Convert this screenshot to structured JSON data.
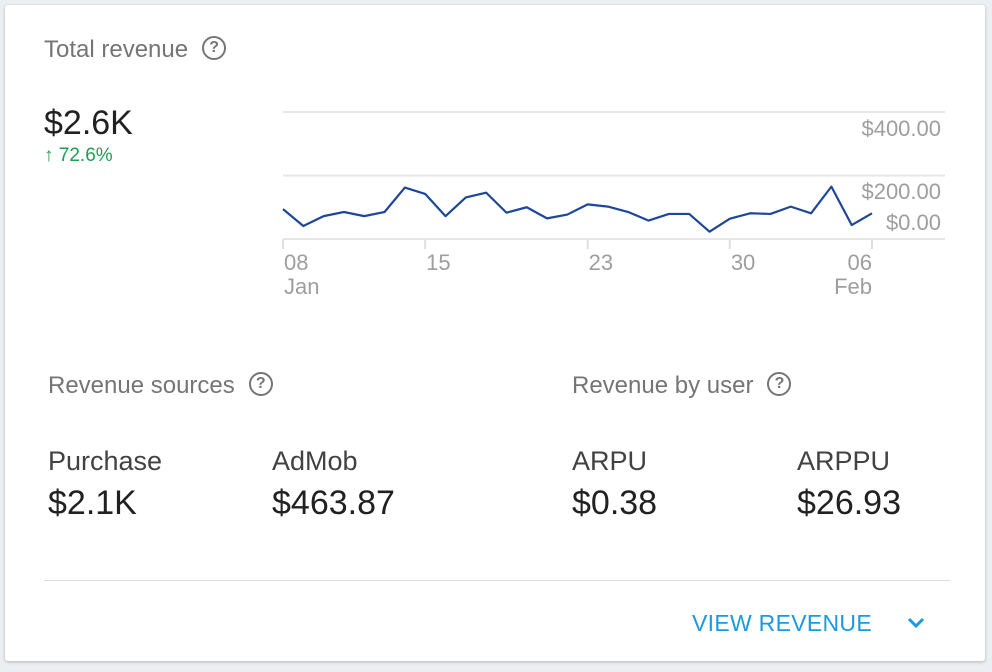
{
  "header": {
    "title": "Total revenue",
    "help_icon": "help-circle-icon",
    "total": "$2.6K",
    "change": "72.6%",
    "change_icon": "arrow-up-icon",
    "change_color": "#1e9e52"
  },
  "chart_data": {
    "type": "line",
    "x": [
      "Jan 08",
      "Jan 09",
      "Jan 10",
      "Jan 11",
      "Jan 12",
      "Jan 13",
      "Jan 14",
      "Jan 15",
      "Jan 16",
      "Jan 17",
      "Jan 18",
      "Jan 19",
      "Jan 20",
      "Jan 21",
      "Jan 22",
      "Jan 23",
      "Jan 24",
      "Jan 25",
      "Jan 26",
      "Jan 27",
      "Jan 28",
      "Jan 29",
      "Jan 30",
      "Jan 31",
      "Feb 01",
      "Feb 02",
      "Feb 03",
      "Feb 04",
      "Feb 05",
      "Feb 06"
    ],
    "series": [
      {
        "values": [
          94,
          41,
          72,
          85,
          72,
          85,
          162,
          142,
          72,
          131,
          146,
          83,
          100,
          65,
          77,
          109,
          102,
          85,
          58,
          79,
          79,
          23,
          64,
          81,
          79,
          102,
          81,
          165,
          44,
          81
        ],
        "color": "#1f4799"
      }
    ],
    "ylim": [
      0,
      400
    ],
    "ytick_labels": [
      "$400.00",
      "$200.00",
      "$0.00"
    ],
    "xtick_labels": [
      {
        "day": "08",
        "month": "Jan"
      },
      {
        "day": "15",
        "month": ""
      },
      {
        "day": "23",
        "month": ""
      },
      {
        "day": "30",
        "month": ""
      },
      {
        "day": "06",
        "month": "Feb"
      }
    ],
    "grid": true
  },
  "sources": {
    "title": "Revenue sources",
    "items": [
      {
        "label": "Purchase",
        "value": "$2.1K"
      },
      {
        "label": "AdMob",
        "value": "$463.87"
      }
    ]
  },
  "by_user": {
    "title": "Revenue by user",
    "items": [
      {
        "label": "ARPU",
        "value": "$0.38"
      },
      {
        "label": "ARPPU",
        "value": "$26.93"
      }
    ]
  },
  "footer": {
    "link": "VIEW REVENUE",
    "link_color": "#1a9ae0",
    "icon": "chevron-down-icon"
  }
}
